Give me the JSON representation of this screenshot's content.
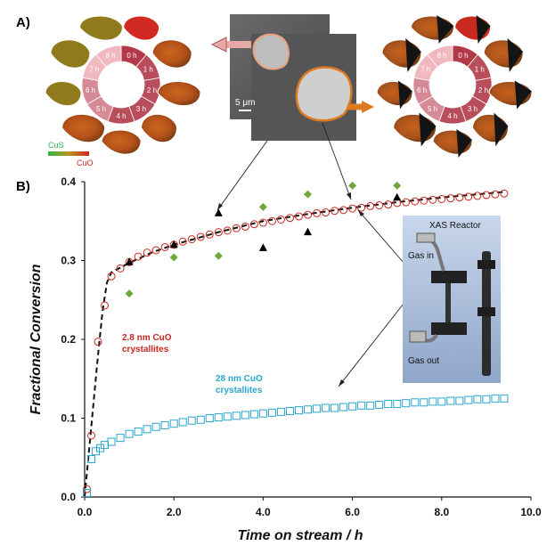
{
  "figure": {
    "panel_a_label": "A)",
    "panel_b_label": "B)",
    "scale_bar": "5 μm",
    "colorbar": {
      "low_label": "CuS",
      "high_label": "CuO",
      "low_color": "#2db34a",
      "high_color": "#d4261f"
    },
    "ring_hours": [
      "0 h",
      "1 h",
      "2 h",
      "3 h",
      "4 h",
      "5 h",
      "6 h",
      "7 h",
      "8 h"
    ],
    "inset": {
      "title": "XAS Reactor",
      "gas_in": "Gas in",
      "gas_out": "Gas out"
    },
    "annotations": {
      "small_line1": "2.8 nm CuO",
      "small_line2": "crystallites",
      "large_line1": "28 nm CuO",
      "large_line2": "crystallites"
    },
    "colors": {
      "red_series": "#c8281e",
      "blue_series": "#2aa6cf",
      "green_series": "#6fa83a",
      "black_series": "#000000",
      "ring_dark": "#b23a48",
      "ring_light": "#f2b8c0"
    }
  },
  "chart_data": {
    "type": "scatter",
    "xlabel": "Time on stream / h",
    "ylabel": "Fractional Conversion",
    "xlim": [
      0,
      10
    ],
    "ylim": [
      0,
      0.4
    ],
    "xticks": [
      "0.0",
      "2.0",
      "4.0",
      "6.0",
      "8.0",
      "10.0"
    ],
    "yticks": [
      "0.0",
      "0.1",
      "0.2",
      "0.3",
      "0.4"
    ],
    "grid": false,
    "series": [
      {
        "marker": "open-circle",
        "color": "#c8281e",
        "x": [
          0.05,
          0.15,
          0.3,
          0.45,
          0.6,
          0.8,
          1.0,
          1.2,
          1.4,
          1.6,
          1.8,
          2.0,
          2.2,
          2.4,
          2.6,
          2.8,
          3.0,
          3.2,
          3.4,
          3.6,
          3.8,
          4.0,
          4.2,
          4.4,
          4.6,
          4.8,
          5.0,
          5.2,
          5.4,
          5.6,
          5.8,
          6.0,
          6.2,
          6.4,
          6.6,
          6.8,
          7.0,
          7.2,
          7.4,
          7.6,
          7.8,
          8.0,
          8.2,
          8.4,
          8.6,
          8.8,
          9.0,
          9.2,
          9.4
        ],
        "y": [
          0.01,
          0.078,
          0.197,
          0.243,
          0.28,
          0.29,
          0.298,
          0.305,
          0.31,
          0.313,
          0.317,
          0.32,
          0.324,
          0.327,
          0.33,
          0.333,
          0.336,
          0.338,
          0.341,
          0.343,
          0.346,
          0.348,
          0.35,
          0.352,
          0.354,
          0.356,
          0.358,
          0.36,
          0.361,
          0.363,
          0.364,
          0.366,
          0.367,
          0.369,
          0.37,
          0.371,
          0.373,
          0.374,
          0.375,
          0.376,
          0.377,
          0.378,
          0.379,
          0.38,
          0.381,
          0.382,
          0.383,
          0.384,
          0.385
        ]
      },
      {
        "marker": "open-square",
        "color": "#2aa6cf",
        "x": [
          0.05,
          0.15,
          0.25,
          0.35,
          0.45,
          0.6,
          0.8,
          1.0,
          1.2,
          1.4,
          1.6,
          1.8,
          2.0,
          2.2,
          2.4,
          2.6,
          2.8,
          3.0,
          3.2,
          3.4,
          3.6,
          3.8,
          4.0,
          4.2,
          4.4,
          4.6,
          4.8,
          5.0,
          5.2,
          5.4,
          5.6,
          5.8,
          6.0,
          6.2,
          6.4,
          6.6,
          6.8,
          7.0,
          7.2,
          7.4,
          7.6,
          7.8,
          8.0,
          8.2,
          8.4,
          8.6,
          8.8,
          9.0,
          9.2,
          9.4
        ],
        "y": [
          0.005,
          0.048,
          0.058,
          0.062,
          0.066,
          0.07,
          0.075,
          0.08,
          0.083,
          0.086,
          0.089,
          0.091,
          0.093,
          0.095,
          0.097,
          0.098,
          0.1,
          0.101,
          0.102,
          0.103,
          0.104,
          0.105,
          0.106,
          0.107,
          0.108,
          0.109,
          0.11,
          0.111,
          0.112,
          0.113,
          0.113,
          0.114,
          0.115,
          0.116,
          0.116,
          0.117,
          0.118,
          0.118,
          0.119,
          0.12,
          0.12,
          0.121,
          0.121,
          0.122,
          0.122,
          0.123,
          0.124,
          0.124,
          0.125,
          0.125
        ]
      },
      {
        "marker": "diamond",
        "color": "#6fa83a",
        "x": [
          1.0,
          2.0,
          3.0,
          4.0,
          5.0,
          6.0,
          7.0
        ],
        "y": [
          0.258,
          0.304,
          0.306,
          0.368,
          0.384,
          0.395,
          0.395
        ]
      },
      {
        "marker": "triangle",
        "color": "#000000",
        "x": [
          1.0,
          2.0,
          3.0,
          4.0,
          5.0,
          7.0
        ],
        "y": [
          0.298,
          0.32,
          0.36,
          0.316,
          0.336,
          0.38
        ]
      },
      {
        "marker": "dashed-line",
        "color": "#111111",
        "x": [
          0.0,
          0.1,
          0.2,
          0.3,
          0.4,
          0.5,
          0.6,
          1.0,
          1.5,
          2.0,
          3.0,
          4.0,
          5.0,
          6.0,
          7.0,
          8.0,
          9.0,
          9.4
        ],
        "y": [
          0.0,
          0.06,
          0.12,
          0.18,
          0.235,
          0.272,
          0.285,
          0.297,
          0.31,
          0.32,
          0.336,
          0.35,
          0.359,
          0.367,
          0.374,
          0.38,
          0.385,
          0.387
        ]
      }
    ]
  }
}
